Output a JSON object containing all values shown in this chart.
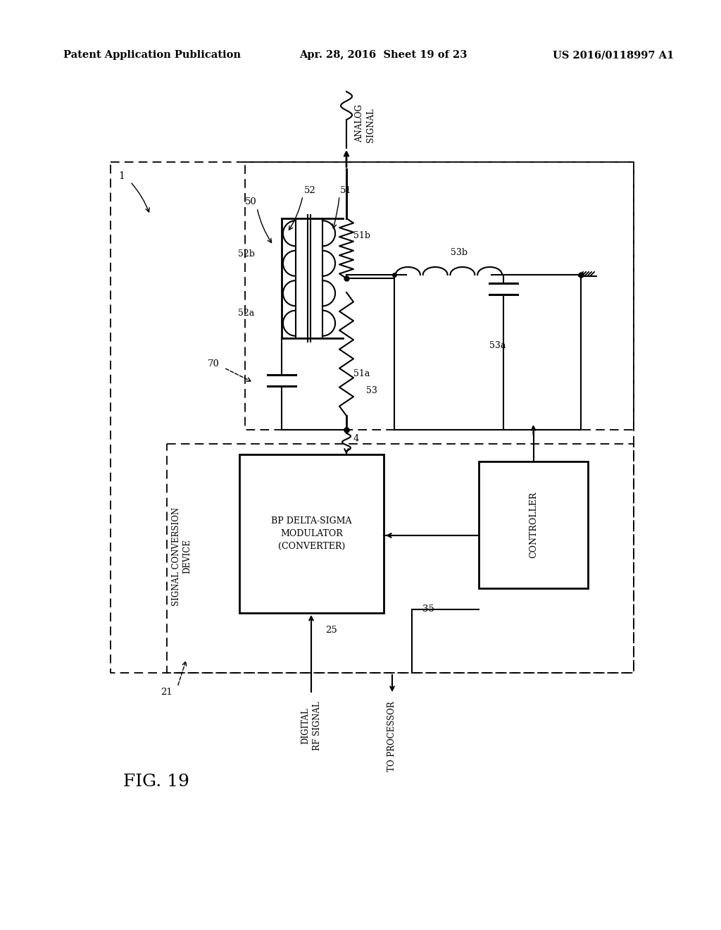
{
  "bg_color": "#ffffff",
  "header_left": "Patent Application Publication",
  "header_mid": "Apr. 28, 2016  Sheet 19 of 23",
  "header_right": "US 2016/0118997 A1",
  "figure_label": "FIG. 19"
}
